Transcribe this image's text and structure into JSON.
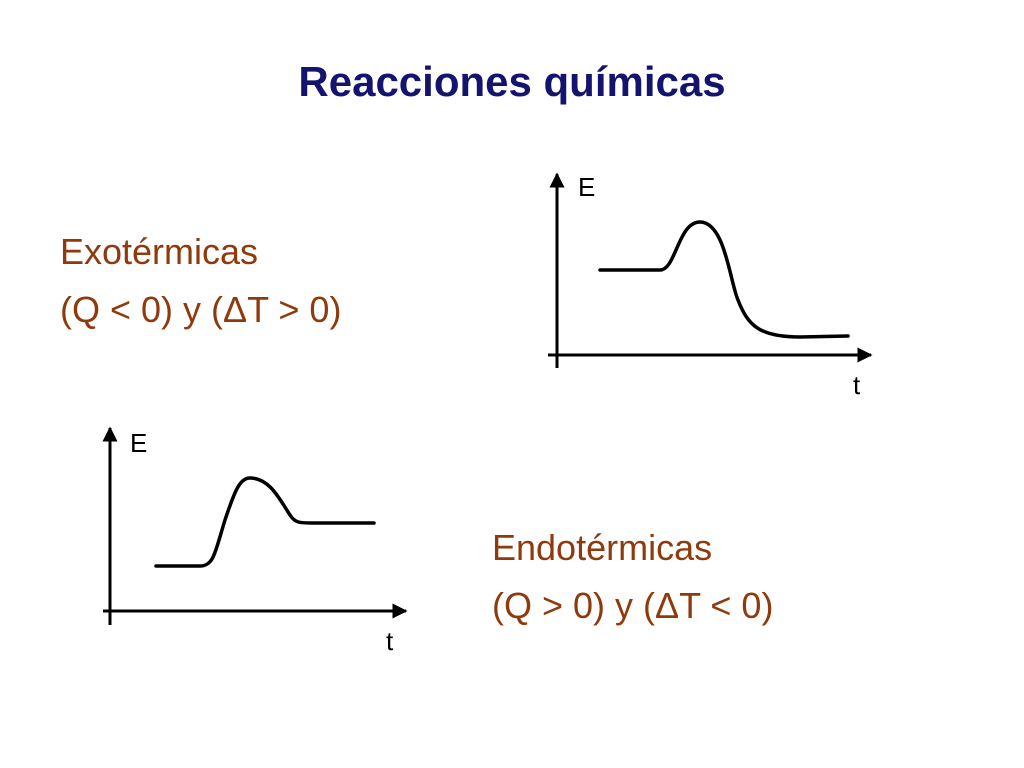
{
  "title": "Reacciones químicas",
  "sections": [
    {
      "label": "Exotérmicas",
      "condition": "(Q < 0) y (ΔT > 0)",
      "y_axis": "E",
      "x_axis": "t"
    },
    {
      "label": "Endotérmicas",
      "condition": "(Q > 0) y (ΔT < 0)",
      "y_axis": "E",
      "x_axis": "t"
    }
  ]
}
